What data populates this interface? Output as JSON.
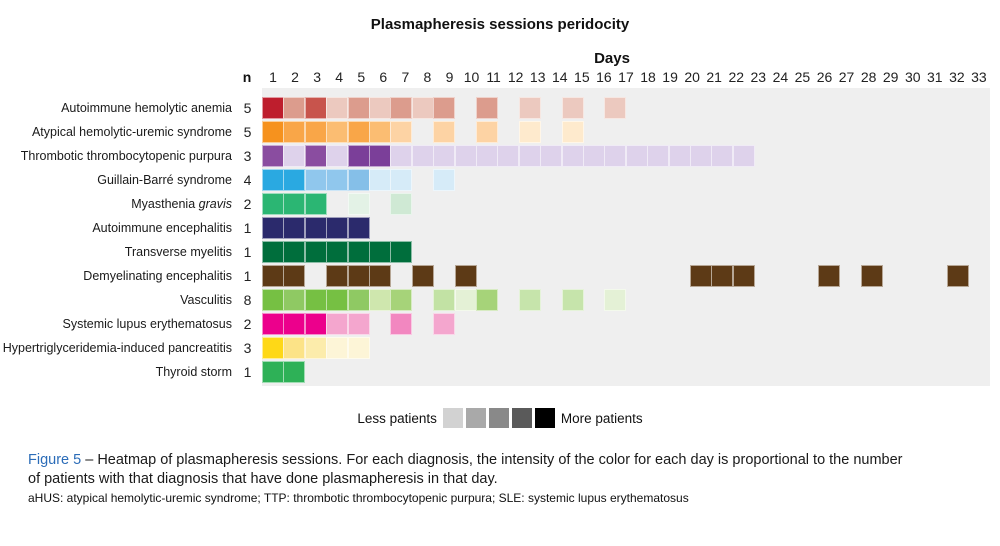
{
  "chart_data": {
    "type": "heatmap",
    "title": "Plasmapheresis sessions peridocity",
    "xlabel": "Days",
    "n_label": "n",
    "days_min": 1,
    "days_max": 33,
    "plot_background": "#efefef",
    "rows": [
      {
        "label": "Autoimmune hemolytic anemia",
        "n": 5,
        "cells": {
          "1": "#be1e2d",
          "2": "#dc9c8d",
          "3": "#c8544c",
          "4": "#ecc9bf",
          "5": "#dc9c8d",
          "6": "#ecc9bf",
          "7": "#dc9c8d",
          "8": "#ecc9bf",
          "9": "#dc9c8d",
          "11": "#dc9c8d",
          "13": "#ecc9bf",
          "15": "#ecc9bf",
          "17": "#ecc9bf"
        }
      },
      {
        "label": "Atypical hemolytic-uremic syndrome",
        "n": 5,
        "cells": {
          "1": "#f6921e",
          "2": "#f9a648",
          "3": "#f9a648",
          "4": "#fbbd72",
          "5": "#f9a648",
          "6": "#fbbd72",
          "7": "#fdd3a4",
          "9": "#fdd3a4",
          "11": "#fdd3a4",
          "13": "#feeacd",
          "15": "#feeacd"
        }
      },
      {
        "label": "Thrombotic thrombocytopenic purpura",
        "n": 3,
        "cells": {
          "1": "#8a4da0",
          "2": "#ded2eb",
          "3": "#8a4da0",
          "4": "#ded2eb",
          "5": "#7b3f99",
          "6": "#7b3f99",
          "7": "#ded2eb",
          "8": "#ded2eb",
          "9": "#ded2eb",
          "10": "#ded2eb",
          "11": "#ded2eb",
          "12": "#ded2eb",
          "13": "#ded2eb",
          "14": "#ded2eb",
          "15": "#ded2eb",
          "16": "#ded2eb",
          "17": "#ded2eb",
          "18": "#ded2eb",
          "19": "#ded2eb",
          "20": "#ded2eb",
          "21": "#ded2eb",
          "22": "#ded2eb",
          "23": "#ded2eb"
        }
      },
      {
        "label": "Guillain-Barré syndrome",
        "n": 4,
        "cells": {
          "1": "#2aa9e1",
          "2": "#2aa9e1",
          "3": "#90c7ed",
          "4": "#90c7ed",
          "5": "#85bfe8",
          "6": "#d6ebf8",
          "7": "#d6ebf8",
          "9": "#d6ebf8"
        }
      },
      {
        "label": "Myasthenia",
        "label_italic": "gravis",
        "n": 2,
        "cells": {
          "1": "#2bb673",
          "2": "#2bb673",
          "3": "#2bb673",
          "5": "#e3f2e6",
          "7": "#cfe9d4"
        }
      },
      {
        "label": "Autoimmune encephalitis",
        "n": 1,
        "cells": {
          "1": "#2b2a6c",
          "2": "#2b2a6c",
          "3": "#2b2a6c",
          "4": "#2b2a6c",
          "5": "#2b2a6c"
        }
      },
      {
        "label": "Transverse myelitis",
        "n": 1,
        "cells": {
          "1": "#006e3c",
          "2": "#006e3c",
          "3": "#006e3c",
          "4": "#006e3c",
          "5": "#006e3c",
          "6": "#006e3c",
          "7": "#006e3c"
        }
      },
      {
        "label": "Demyelinating encephalitis",
        "n": 1,
        "cells": {
          "1": "#5d3a16",
          "2": "#5d3a16",
          "4": "#5d3a16",
          "5": "#5d3a16",
          "6": "#5d3a16",
          "8": "#5d3a16",
          "10": "#5d3a16",
          "21": "#5d3a16",
          "22": "#5d3a16",
          "23": "#5d3a16",
          "27": "#5d3a16",
          "29": "#5d3a16",
          "33": "#5d3a16"
        }
      },
      {
        "label": "Vasculitis",
        "n": 8,
        "cells": {
          "1": "#76c043",
          "2": "#8fc963",
          "3": "#76c043",
          "4": "#76c043",
          "5": "#8fc963",
          "6": "#cfe7ae",
          "7": "#a6d379",
          "9": "#c2e2a4",
          "10": "#e4f1d6",
          "11": "#a6d379",
          "13": "#c6e4ab",
          "15": "#c6e4ab",
          "17": "#e4f1d6"
        }
      },
      {
        "label": "Systemic lupus erythematosus",
        "n": 2,
        "cells": {
          "1": "#ec008c",
          "2": "#ec008c",
          "3": "#ec008c",
          "4": "#f4a6ce",
          "5": "#f4a6ce",
          "7": "#f287c0",
          "9": "#f4a6ce"
        }
      },
      {
        "label": "Hypertriglyceridemia-induced pancreatitis",
        "n": 3,
        "cells": {
          "1": "#fed817",
          "2": "#fce387",
          "3": "#fcecab",
          "4": "#fdf5d7",
          "5": "#fdf5d7"
        }
      },
      {
        "label": "Thyroid storm",
        "n": 1,
        "cells": {
          "1": "#2eb157",
          "2": "#2eb157"
        }
      }
    ],
    "legend": {
      "less_label": "Less patients",
      "more_label": "More patients",
      "swatches": [
        "#d2d2d2",
        "#a9a9a9",
        "#898989",
        "#5a5a5a",
        "#000000"
      ]
    }
  },
  "caption": {
    "figure_label": "Figure 5",
    "line1_rest": " – Heatmap of plasmapheresis sessions. For each diagnosis, the intensity of the color for each day is proportional to the number",
    "line2": "of patients with that diagnosis that have done plasmapheresis in that day.",
    "abbreviations": "aHUS: atypical hemolytic-uremic syndrome; TTP: thrombotic thrombocytopenic purpura; SLE: systemic lupus erythematosus",
    "accent_color": "#2b6cb8"
  }
}
